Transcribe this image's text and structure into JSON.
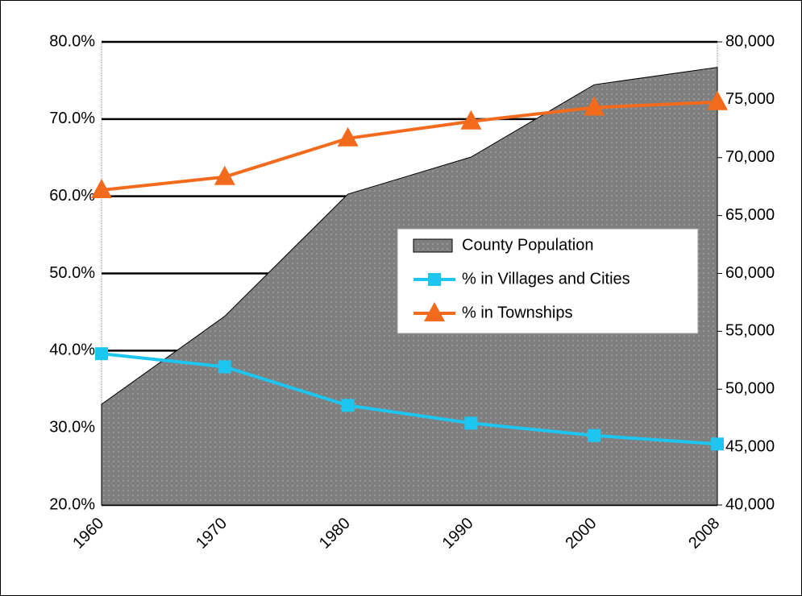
{
  "chart_data": {
    "type": "line",
    "categories": [
      "1960",
      "1970",
      "1980",
      "1990",
      "2000",
      "2008"
    ],
    "series": [
      {
        "name": "County Population",
        "type": "area",
        "axis": "y2",
        "color": "#7f7f7f",
        "values": [
          48700,
          56300,
          66850,
          70050,
          76300,
          77800
        ]
      },
      {
        "name": "% in Villages and Cities",
        "type": "line",
        "marker": "square",
        "color": "#1cc6f0",
        "values": [
          39.6,
          37.9,
          32.9,
          30.6,
          29.0,
          27.9
        ]
      },
      {
        "name": "% in Townships",
        "type": "line",
        "marker": "triangle",
        "color": "#f26b1d",
        "values": [
          60.8,
          62.5,
          67.5,
          69.7,
          71.5,
          72.2
        ]
      }
    ],
    "ylim": [
      20,
      80
    ],
    "yticks": [
      {
        "value": 20,
        "label": "20.0%"
      },
      {
        "value": 30,
        "label": "30.0%"
      },
      {
        "value": 40,
        "label": "40.0%"
      },
      {
        "value": 50,
        "label": "50.0%"
      },
      {
        "value": 60,
        "label": "60.0%"
      },
      {
        "value": 70,
        "label": "70.0%"
      },
      {
        "value": 80,
        "label": "80.0%"
      }
    ],
    "y2lim": [
      40000,
      80000
    ],
    "y2ticks": [
      {
        "value": 40000,
        "label": "40,000"
      },
      {
        "value": 45000,
        "label": "45,000"
      },
      {
        "value": 50000,
        "label": "50,000"
      },
      {
        "value": 55000,
        "label": "55,000"
      },
      {
        "value": 60000,
        "label": "60,000"
      },
      {
        "value": 65000,
        "label": "65,000"
      },
      {
        "value": 70000,
        "label": "70,000"
      },
      {
        "value": 75000,
        "label": "75,000"
      },
      {
        "value": 80000,
        "label": "80,000"
      }
    ],
    "grid": true,
    "legend": "right"
  }
}
